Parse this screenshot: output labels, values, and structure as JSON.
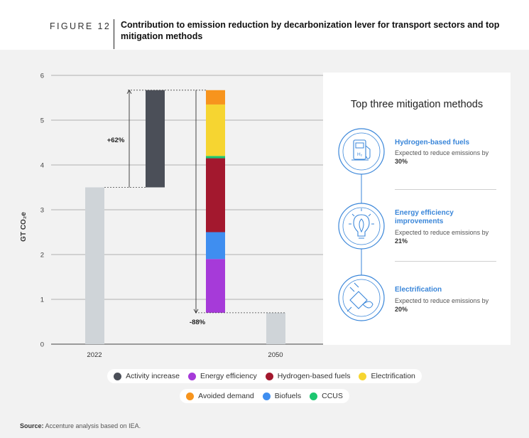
{
  "figure": {
    "label": "FIGURE 12",
    "title": "Contribution to emission reduction by decarbonization lever for transport sectors and top mitigation methods"
  },
  "chart_data": {
    "type": "bar",
    "subtype": "waterfall",
    "ylabel": "GT CO₂e",
    "ylim": [
      0,
      6
    ],
    "yticks": [
      0,
      1,
      2,
      3,
      4,
      5,
      6
    ],
    "grid": true,
    "x_tick_labels": [
      "2022",
      "2050"
    ],
    "bars": [
      {
        "name": "2022",
        "value": 3.5
      },
      {
        "name": "Activity increase",
        "start": 3.5,
        "end": 5.67
      },
      {
        "name": "Energy efficiency",
        "start": 0.7,
        "end": 1.9
      },
      {
        "name": "Biofuels",
        "start": 1.9,
        "end": 2.5
      },
      {
        "name": "Hydrogen-based fuels",
        "start": 2.5,
        "end": 4.15
      },
      {
        "name": "CCUS",
        "start": 4.15,
        "end": 4.2
      },
      {
        "name": "Electrification",
        "start": 4.2,
        "end": 5.35
      },
      {
        "name": "Avoided demand",
        "start": 5.35,
        "end": 5.67
      },
      {
        "name": "2050",
        "value": 0.7
      }
    ],
    "annotations": {
      "increase": "+62%",
      "decrease": "-88%"
    },
    "legend": [
      {
        "label": "Activity increase",
        "color": "#4b4f58"
      },
      {
        "label": "Energy efficiency",
        "color": "#a63ad9"
      },
      {
        "label": "Hydrogen-based fuels",
        "color": "#a3182e"
      },
      {
        "label": "Electrification",
        "color": "#f6d531"
      },
      {
        "label": "Avoided demand",
        "color": "#f7941d"
      },
      {
        "label": "Biofuels",
        "color": "#3f8ef0"
      },
      {
        "label": "CCUS",
        "color": "#1cc670"
      }
    ],
    "legend_position": "bottom",
    "total_color": "#cfd4d8"
  },
  "panel": {
    "title": "Top three mitigation methods",
    "methods": [
      {
        "icon": "hydrogen-pump-icon",
        "title": "Hydrogen-based fuels",
        "desc_prefix": "Expected to reduce emissions by ",
        "value": "30%",
        "icon_label": "H₂"
      },
      {
        "icon": "lightbulb-leaf-icon",
        "title": "Energy efficiency improvements",
        "desc_prefix": "Expected to reduce emissions by ",
        "value": "21%"
      },
      {
        "icon": "plug-leaf-icon",
        "title": "Electrification",
        "desc_prefix": "Expected to reduce emissions by ",
        "value": "20%"
      }
    ],
    "accent": "#3a86d9"
  },
  "source": {
    "label": "Source:",
    "text": " Accenture analysis based on IEA."
  }
}
